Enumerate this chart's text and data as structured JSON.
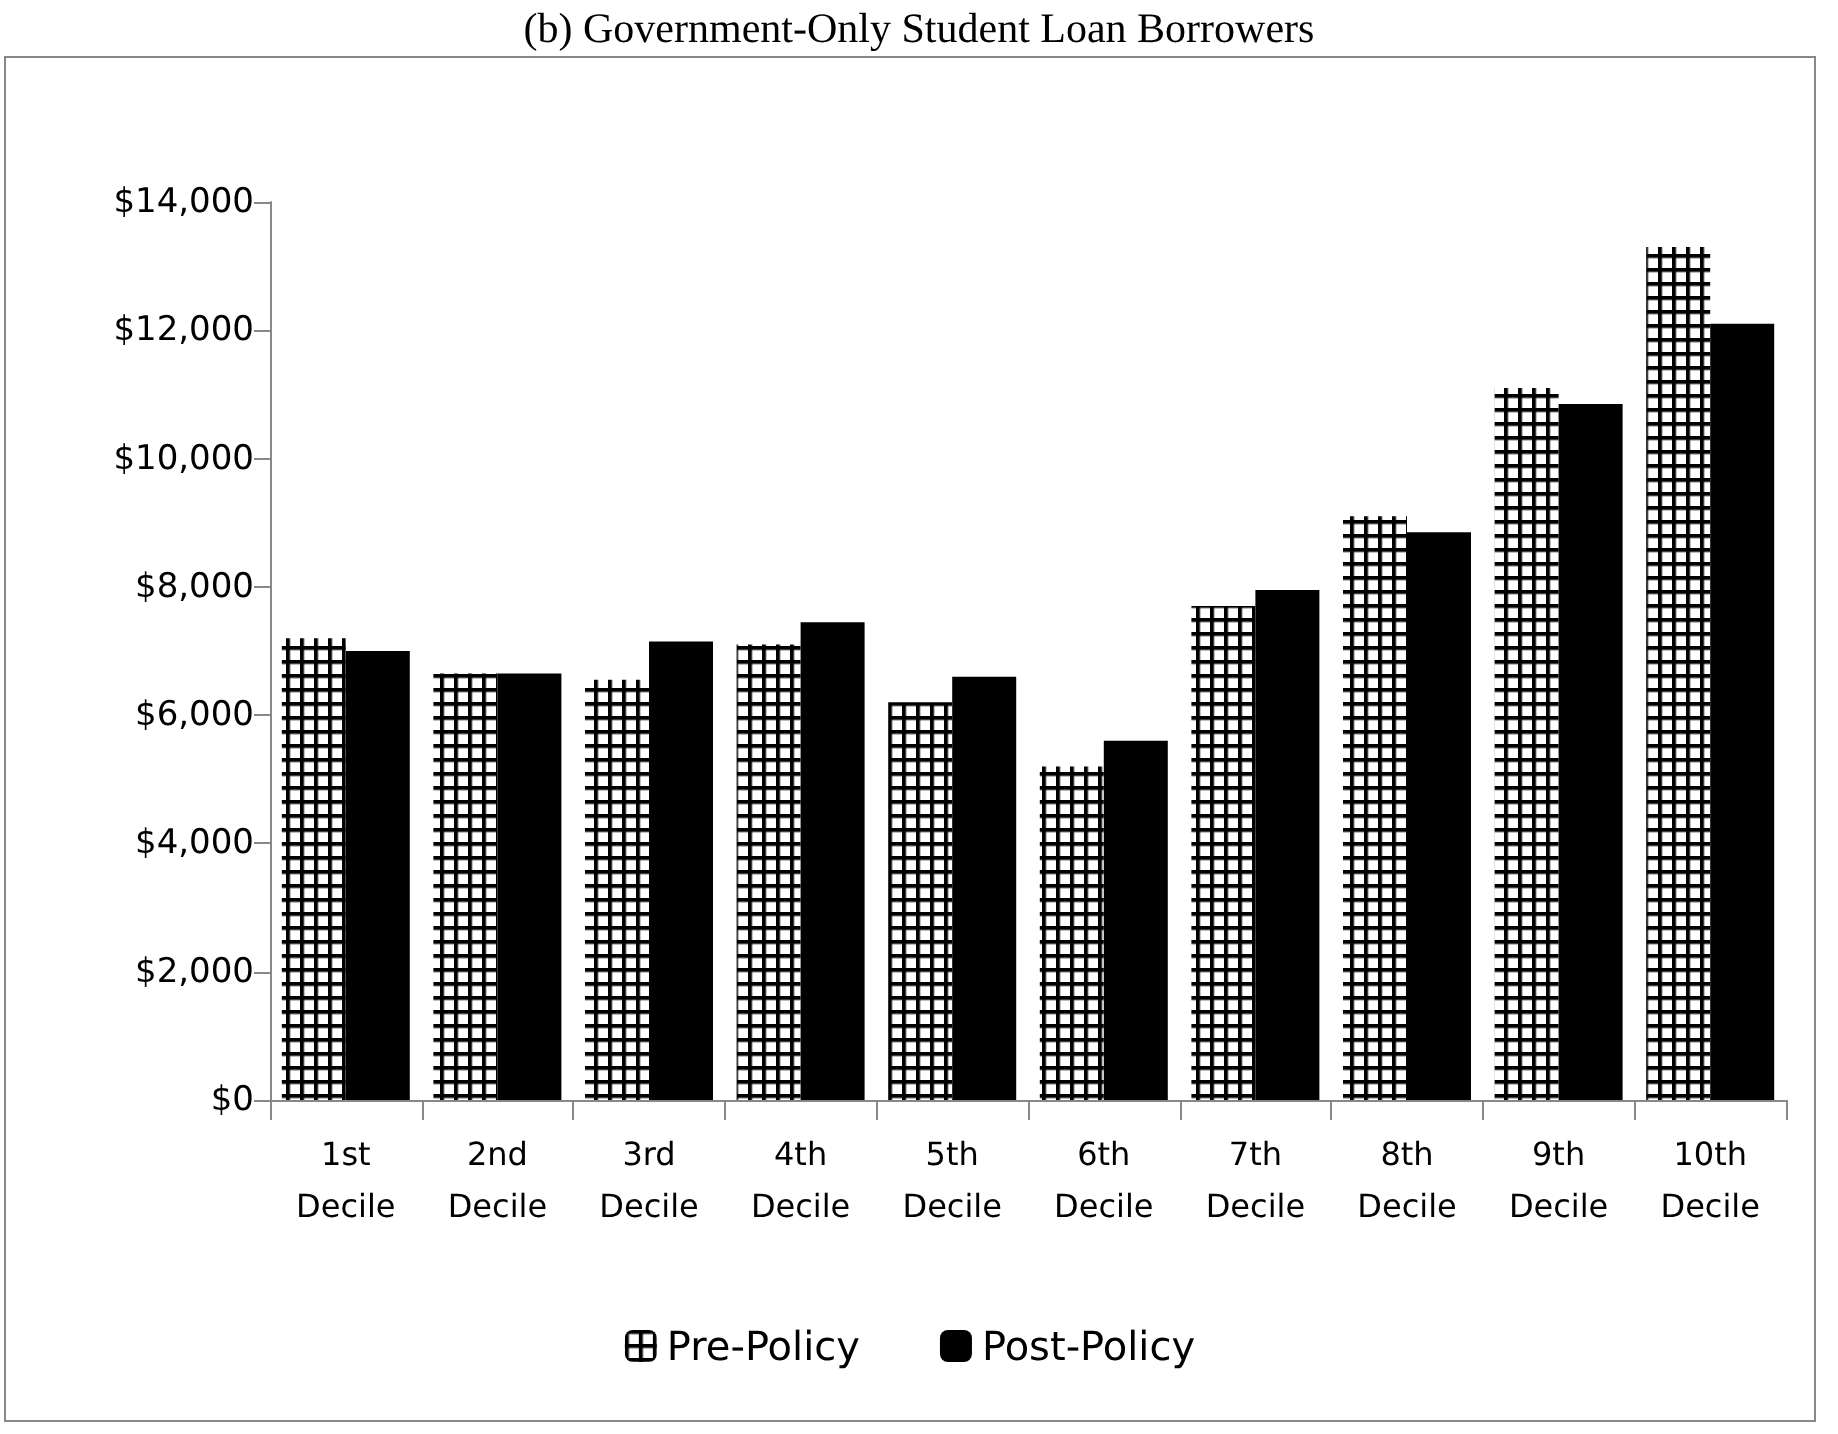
{
  "chart_data": {
    "type": "bar",
    "title": "(b) Government-Only Student Loan Borrowers",
    "categories": [
      "1st Decile",
      "2nd Decile",
      "3rd Decile",
      "4th Decile",
      "5th Decile",
      "6th Decile",
      "7th Decile",
      "8th Decile",
      "9th Decile",
      "10th Decile"
    ],
    "series": [
      {
        "name": "Pre-Policy",
        "color": "#000000",
        "values": [
          7200,
          6650,
          6550,
          7100,
          6200,
          5200,
          7700,
          9100,
          11100,
          13300
        ]
      },
      {
        "name": "Post-Policy",
        "color": "#000000",
        "values": [
          7000,
          6650,
          7150,
          7450,
          6600,
          5600,
          7950,
          8850,
          10850,
          12100
        ]
      }
    ],
    "ylim": [
      0,
      14000
    ],
    "yticks": [
      {
        "value": 0,
        "label": "$0"
      },
      {
        "value": 2000,
        "label": "$2,000"
      },
      {
        "value": 4000,
        "label": "$4,000"
      },
      {
        "value": 6000,
        "label": "$6,000"
      },
      {
        "value": 8000,
        "label": "$8,000"
      },
      {
        "value": 10000,
        "label": "$10,000"
      },
      {
        "value": 12000,
        "label": "$12,000"
      },
      {
        "value": 14000,
        "label": "$14,000"
      }
    ],
    "grid": false,
    "legend": "bottom"
  }
}
